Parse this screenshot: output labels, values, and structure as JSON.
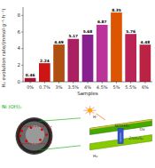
{
  "chart_data": {
    "type": "bar",
    "categories": [
      "0%",
      "0.7%",
      "3%",
      "3.5%",
      "4%",
      "4.5%",
      "5%",
      "5.5%",
      "6%"
    ],
    "values": [
      0.46,
      2.24,
      4.49,
      5.17,
      5.68,
      6.87,
      8.35,
      5.76,
      4.48
    ],
    "colors": [
      "#aa1030",
      "#cc1515",
      "#b05010",
      "#aa2060",
      "#882090",
      "#bb3399",
      "#dd5500",
      "#bb2255",
      "#bb2244"
    ],
    "ylabel": "H₂ evolution rate/(mmol·g⁻¹·h⁻¹)",
    "xlabel": "Samples",
    "ylim": [
      0,
      9
    ],
    "yticks": [
      0,
      2,
      4,
      6,
      8
    ],
    "grid": false,
    "data_labels": true,
    "annotations": [
      "Ni (OH)₂",
      "H⁺",
      "H₂",
      "Ox",
      "Ni(OH)₂",
      "ZnIn₂S₄"
    ]
  }
}
